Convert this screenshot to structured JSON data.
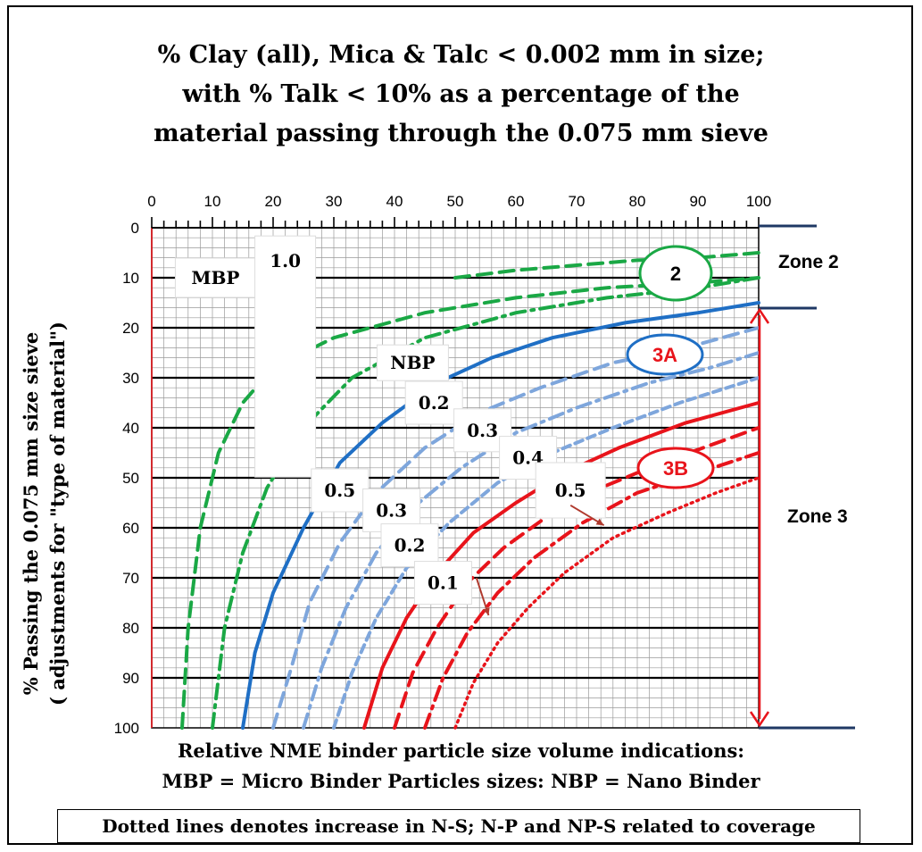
{
  "title_lines": [
    "% Clay (all), Mica & Talc < 0.002 mm in size;",
    "with % Talk < 10% as a percentage of the",
    "material passing through the 0.075 mm sieve"
  ],
  "footer_lines": [
    "Relative NME binder particle size volume indications:",
    "MBP = Micro Binder Particles sizes: NBP = Nano Binder"
  ],
  "note": "Dotted lines denotes increase in N-S; N-P and NP-S related to coverage",
  "ylabel_lines": [
    "% Passing the 0.075 mm size sieve",
    "( adjustments for \"type of material\")"
  ],
  "zones": {
    "zone2": "Zone 2",
    "zone3": "Zone 3"
  },
  "zone_ellipses": {
    "z2": "2",
    "z3a": "3A",
    "z3b": "3B"
  },
  "colors": {
    "green": "#1aa845",
    "blue": "#1f6fc5",
    "lightblue": "#7ea6dc",
    "red": "#e8141b",
    "grid_major": "#000000",
    "grid_minor": "#999999",
    "axis_red": "#e8141b",
    "zone_bar": "#1f3864"
  },
  "chart_data": {
    "type": "line",
    "x_axis": {
      "position": "top",
      "range": [
        0,
        100
      ],
      "ticks": [
        0,
        10,
        20,
        30,
        40,
        50,
        60,
        70,
        80,
        90,
        100
      ]
    },
    "y_axis": {
      "inverted": true,
      "range": [
        0,
        100
      ],
      "ticks": [
        0,
        10,
        20,
        30,
        40,
        50,
        60,
        70,
        80,
        90,
        100
      ]
    },
    "grid": true,
    "series": [
      {
        "color": "green",
        "style": "dash",
        "points": [
          [
            5,
            100
          ],
          [
            6,
            80
          ],
          [
            8,
            60
          ],
          [
            11,
            45
          ],
          [
            15,
            35
          ],
          [
            20,
            28
          ],
          [
            30,
            22
          ],
          [
            45,
            17
          ],
          [
            60,
            14
          ],
          [
            75,
            12
          ],
          [
            90,
            11
          ],
          [
            100,
            10
          ]
        ]
      },
      {
        "color": "green",
        "style": "dashdot",
        "points": [
          [
            10,
            100
          ],
          [
            12,
            80
          ],
          [
            15,
            65
          ],
          [
            19,
            52
          ],
          [
            25,
            40
          ],
          [
            33,
            30
          ],
          [
            45,
            22
          ],
          [
            60,
            17
          ],
          [
            75,
            14
          ],
          [
            90,
            12
          ],
          [
            100,
            10
          ]
        ]
      },
      {
        "color": "green",
        "style": "dash-upper",
        "points": [
          [
            50,
            10
          ],
          [
            60,
            8.5
          ],
          [
            70,
            7.5
          ],
          [
            80,
            6.5
          ],
          [
            90,
            6
          ],
          [
            100,
            5
          ]
        ]
      },
      {
        "color": "blue",
        "style": "solid",
        "points": [
          [
            15,
            100
          ],
          [
            17,
            85
          ],
          [
            20,
            73
          ],
          [
            25,
            60
          ],
          [
            31,
            47
          ],
          [
            38,
            39
          ],
          [
            47,
            31
          ],
          [
            56,
            26
          ],
          [
            66,
            22
          ],
          [
            78,
            19
          ],
          [
            90,
            17
          ],
          [
            100,
            15
          ]
        ]
      },
      {
        "color": "lightblue",
        "style": "dash",
        "points": [
          [
            20,
            100
          ],
          [
            23,
            88
          ],
          [
            26,
            75
          ],
          [
            31,
            63
          ],
          [
            37,
            53
          ],
          [
            45,
            44
          ],
          [
            54,
            37
          ],
          [
            64,
            32
          ],
          [
            76,
            27
          ],
          [
            88,
            24
          ],
          [
            100,
            20
          ]
        ]
      },
      {
        "color": "lightblue",
        "style": "dashdot",
        "points": [
          [
            25,
            100
          ],
          [
            28,
            88
          ],
          [
            32,
            76
          ],
          [
            37,
            65
          ],
          [
            43,
            56
          ],
          [
            51,
            48
          ],
          [
            60,
            41
          ],
          [
            70,
            36
          ],
          [
            82,
            31
          ],
          [
            92,
            28
          ],
          [
            100,
            25
          ]
        ]
      },
      {
        "color": "lightblue",
        "style": "shortdash",
        "points": [
          [
            30,
            100
          ],
          [
            33,
            89
          ],
          [
            37,
            78
          ],
          [
            42,
            68
          ],
          [
            49,
            59
          ],
          [
            57,
            51
          ],
          [
            66,
            45
          ],
          [
            76,
            40
          ],
          [
            87,
            35
          ],
          [
            100,
            30
          ]
        ]
      },
      {
        "color": "red",
        "style": "solid",
        "points": [
          [
            35,
            100
          ],
          [
            38,
            88
          ],
          [
            42,
            78
          ],
          [
            47,
            69
          ],
          [
            53,
            61
          ],
          [
            60,
            55
          ],
          [
            68,
            49
          ],
          [
            77,
            44
          ],
          [
            88,
            39
          ],
          [
            100,
            35
          ]
        ]
      },
      {
        "color": "red",
        "style": "dash",
        "points": [
          [
            40,
            100
          ],
          [
            43,
            89
          ],
          [
            47,
            80
          ],
          [
            52,
            71
          ],
          [
            58,
            64
          ],
          [
            66,
            57
          ],
          [
            74,
            52
          ],
          [
            84,
            47
          ],
          [
            100,
            40
          ]
        ]
      },
      {
        "color": "red",
        "style": "dashdot",
        "points": [
          [
            45,
            100
          ],
          [
            48,
            90
          ],
          [
            52,
            81
          ],
          [
            57,
            73
          ],
          [
            63,
            66
          ],
          [
            71,
            59
          ],
          [
            80,
            53
          ],
          [
            90,
            49
          ],
          [
            100,
            45
          ]
        ]
      },
      {
        "color": "red",
        "style": "dotted",
        "points": [
          [
            50,
            100
          ],
          [
            53,
            91
          ],
          [
            57,
            83
          ],
          [
            62,
            76
          ],
          [
            68,
            69
          ],
          [
            76,
            62
          ],
          [
            85,
            57
          ],
          [
            93,
            53
          ],
          [
            100,
            50
          ]
        ]
      }
    ],
    "labels": [
      {
        "text": "MBP",
        "x": 10.5,
        "y": 10
      },
      {
        "text": "1.0",
        "x": 22,
        "y": 7
      },
      {
        "text": "NBP",
        "x": 43,
        "y": 27
      },
      {
        "text": "0.2",
        "x": 46.5,
        "y": 35
      },
      {
        "text": "0.3",
        "x": 54.5,
        "y": 40.5
      },
      {
        "text": "0.4",
        "x": 62,
        "y": 46
      },
      {
        "text": "0.5",
        "x": 31,
        "y": 52.5
      },
      {
        "text": "0.3",
        "x": 39.5,
        "y": 56.5
      },
      {
        "text": "0.2",
        "x": 42.5,
        "y": 63.5
      },
      {
        "text": "0.1",
        "x": 48,
        "y": 71
      },
      {
        "text": "0.5",
        "x": 69,
        "y": 52.5
      }
    ]
  }
}
